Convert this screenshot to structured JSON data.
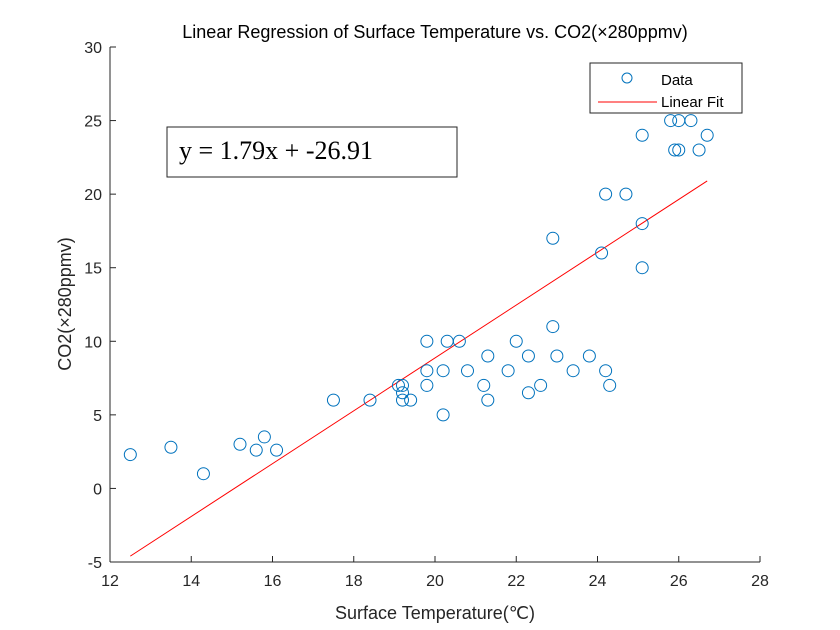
{
  "chart_data": {
    "type": "scatter",
    "title": "Linear Regression of Surface Temperature vs. CO2(×280ppmv)",
    "xlabel": "Surface Temperature(℃)",
    "ylabel": "CO2(×280ppmv)",
    "xlim": [
      12,
      28
    ],
    "ylim": [
      -5,
      30
    ],
    "xticks": [
      "12",
      "14",
      "16",
      "18",
      "20",
      "22",
      "24",
      "26",
      "28"
    ],
    "yticks": [
      "-5",
      "0",
      "5",
      "10",
      "15",
      "20",
      "25",
      "30"
    ],
    "grid": false,
    "legend_position": "top-right",
    "series": [
      {
        "name": "Data",
        "marker": "circle",
        "color": "#0072BD",
        "points": [
          [
            12.5,
            2.3
          ],
          [
            13.5,
            2.8
          ],
          [
            14.3,
            1.0
          ],
          [
            15.2,
            3.0
          ],
          [
            15.6,
            2.6
          ],
          [
            15.8,
            3.5
          ],
          [
            16.1,
            2.6
          ],
          [
            17.5,
            6.0
          ],
          [
            18.4,
            6.0
          ],
          [
            19.1,
            7.0
          ],
          [
            19.2,
            7.0
          ],
          [
            19.2,
            6.5
          ],
          [
            19.2,
            6.0
          ],
          [
            19.4,
            6.0
          ],
          [
            19.8,
            10.0
          ],
          [
            19.8,
            8.0
          ],
          [
            19.8,
            7.0
          ],
          [
            20.2,
            8.0
          ],
          [
            20.2,
            5.0
          ],
          [
            20.3,
            10.0
          ],
          [
            20.6,
            10.0
          ],
          [
            20.8,
            8.0
          ],
          [
            21.2,
            7.0
          ],
          [
            21.3,
            9.0
          ],
          [
            21.3,
            6.0
          ],
          [
            21.8,
            8.0
          ],
          [
            22.0,
            10.0
          ],
          [
            22.3,
            9.0
          ],
          [
            22.3,
            6.5
          ],
          [
            22.6,
            7.0
          ],
          [
            22.9,
            11.0
          ],
          [
            22.9,
            17.0
          ],
          [
            23.0,
            9.0
          ],
          [
            23.4,
            8.0
          ],
          [
            23.8,
            9.0
          ],
          [
            24.1,
            16.0
          ],
          [
            24.2,
            8.0
          ],
          [
            24.2,
            20.0
          ],
          [
            24.3,
            7.0
          ],
          [
            24.7,
            28.0
          ],
          [
            24.7,
            20.0
          ],
          [
            25.1,
            24.0
          ],
          [
            25.1,
            18.0
          ],
          [
            25.1,
            15.0
          ],
          [
            25.8,
            25.0
          ],
          [
            25.9,
            23.0
          ],
          [
            26.0,
            25.0
          ],
          [
            26.0,
            23.0
          ],
          [
            26.3,
            25.0
          ],
          [
            26.5,
            23.0
          ],
          [
            26.7,
            24.0
          ]
        ]
      },
      {
        "name": "Linear Fit",
        "type": "line",
        "color": "#FF0000",
        "points": [
          [
            12.5,
            -4.6
          ],
          [
            26.7,
            20.9
          ]
        ]
      }
    ],
    "annotation": "y = 1.79x + -26.91"
  }
}
